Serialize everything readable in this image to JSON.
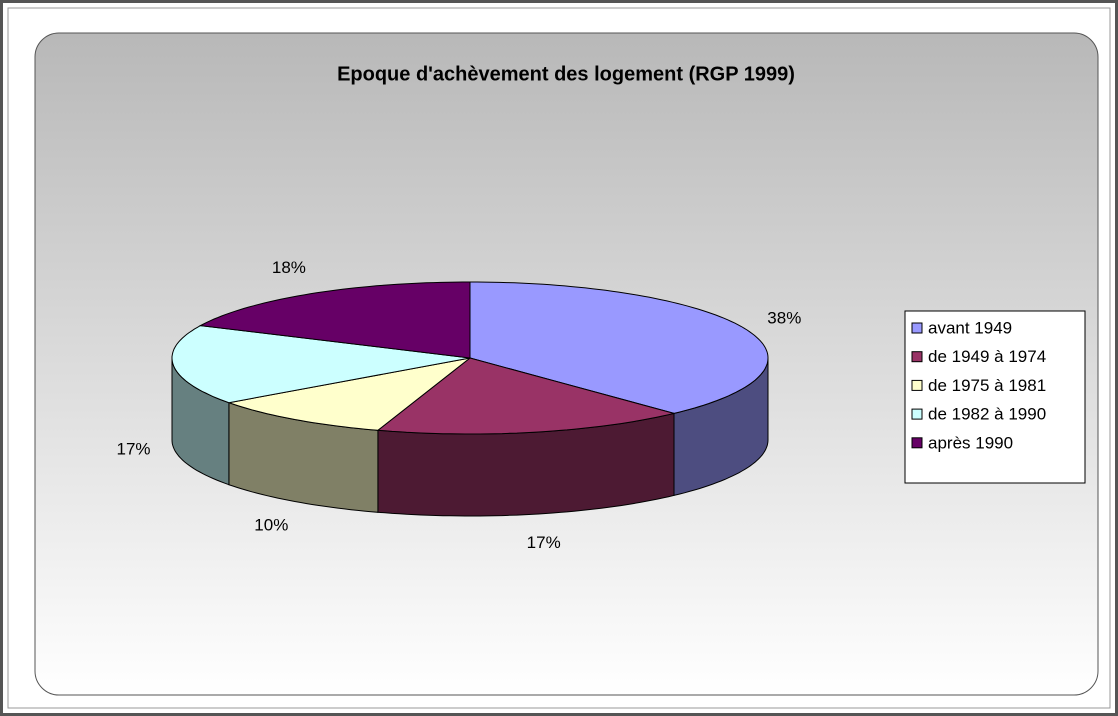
{
  "chart_data": {
    "type": "pie",
    "title": "Epoque d'achèvement des logement (RGP 1999)",
    "categories": [
      "avant 1949",
      "de 1949 à 1974",
      "de 1975 à 1981",
      "de 1982 à 1990",
      "après 1990"
    ],
    "values": [
      38,
      17,
      10,
      17,
      18
    ],
    "value_labels": [
      "38%",
      "17%",
      "10%",
      "17%",
      "18%"
    ],
    "colors": [
      "#9999ff",
      "#993366",
      "#ffffcc",
      "#ccffff",
      "#660066"
    ],
    "legend": "right"
  }
}
